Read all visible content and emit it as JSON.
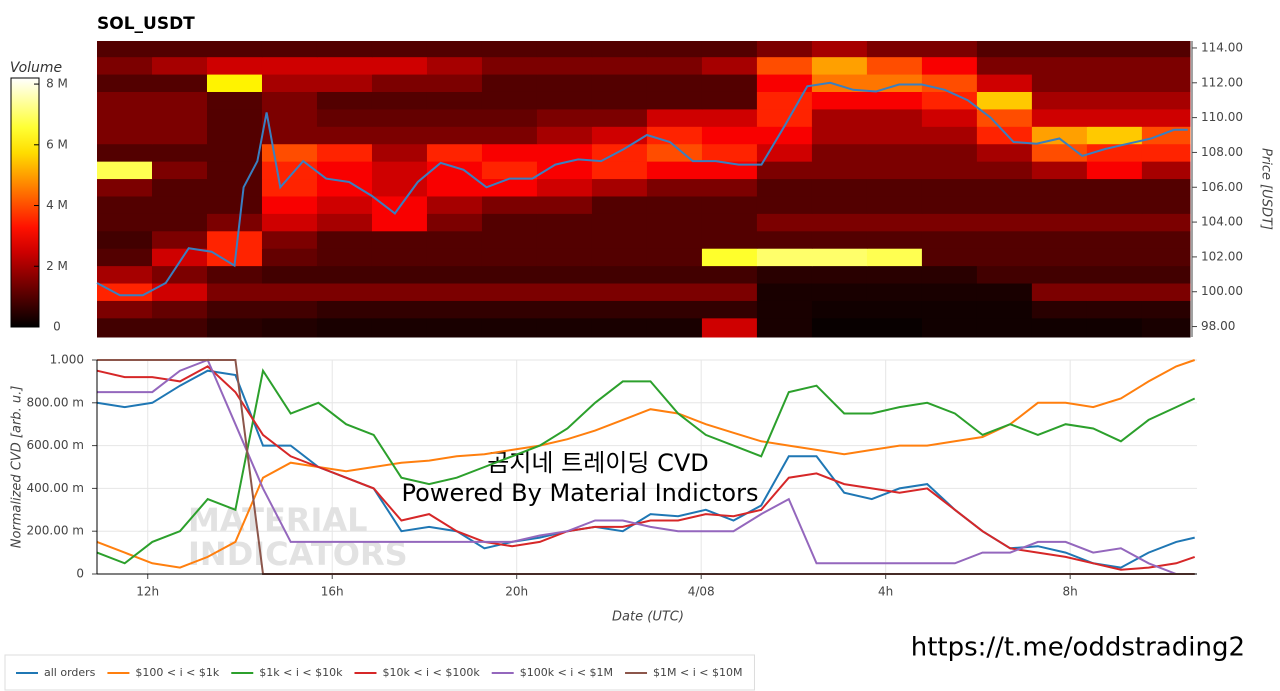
{
  "chart_data": [
    {
      "type": "heatmap",
      "title": "SOL_USDT",
      "y_label": "Price [USDT]",
      "colorbar_label": "Volume",
      "colormap": "hot",
      "clim": [
        0,
        8.2
      ],
      "cticks": [
        0,
        {
          "value": 2,
          "label": "2 M"
        },
        {
          "value": 4,
          "label": "4 M"
        },
        {
          "value": 6,
          "label": "6 M"
        },
        {
          "value": 8,
          "label": "8 M"
        }
      ],
      "xlim": [
        10.9,
        34.75
      ],
      "ylim": [
        97.4,
        114.4
      ],
      "yticks": [
        {
          "value": 98,
          "label": "98.00"
        },
        {
          "value": 100,
          "label": "100.00"
        },
        {
          "value": 102,
          "label": "102.00"
        },
        {
          "value": 104,
          "label": "104.00"
        },
        {
          "value": 106,
          "label": "106.00"
        },
        {
          "value": 108,
          "label": "108.00"
        },
        {
          "value": 110,
          "label": "110.00"
        },
        {
          "value": 112,
          "label": "112.00"
        },
        {
          "value": 114,
          "label": "114.00"
        }
      ],
      "x_bins": [
        10.9,
        12.1,
        13.3,
        14.5,
        15.7,
        16.9,
        18.1,
        19.3,
        20.5,
        21.7,
        22.9,
        24.1,
        25.3,
        26.5,
        27.7,
        28.9,
        30.1,
        31.3,
        32.5,
        33.7,
        34.75
      ],
      "y_bins": [
        97.4,
        98.5,
        99.5,
        100.5,
        101.5,
        102.5,
        103.5,
        104.5,
        105.5,
        106.5,
        107.5,
        108.5,
        109.5,
        110.5,
        111.5,
        112.5,
        113.5,
        114.4
      ],
      "values": [
        [
          0.8,
          0.8,
          0.5,
          0.4,
          0.3,
          0.3,
          0.3,
          0.3,
          0.3,
          0.3,
          0.3,
          2.5,
          0.3,
          0.1,
          0.1,
          0.2,
          0.2,
          0.2,
          0.2,
          0.3
        ],
        [
          1.5,
          1.2,
          0.8,
          0.8,
          0.6,
          0.6,
          0.6,
          0.6,
          0.6,
          0.6,
          0.6,
          0.6,
          0.3,
          0.2,
          0.2,
          0.2,
          0.2,
          0.5,
          0.5,
          0.5
        ],
        [
          3.5,
          2.5,
          1.5,
          1.5,
          1.5,
          1.5,
          1.5,
          1.5,
          1.5,
          1.5,
          1.5,
          1.5,
          0.3,
          0.3,
          0.3,
          0.3,
          0.3,
          1.5,
          1.5,
          1.5
        ],
        [
          2,
          1.5,
          1,
          0.8,
          0.8,
          0.8,
          0.8,
          0.8,
          0.8,
          0.8,
          0.8,
          0.8,
          0.5,
          0.5,
          0.5,
          0.5,
          0.8,
          0.8,
          0.8,
          0.8
        ],
        [
          1,
          2.5,
          3.5,
          1.2,
          1,
          1,
          1,
          1,
          1,
          1,
          1,
          6.5,
          7,
          7,
          6.8,
          1,
          1,
          1,
          1,
          1
        ],
        [
          0.8,
          1.5,
          3.5,
          1.5,
          1,
          1,
          1,
          1,
          1,
          1,
          1,
          1,
          1,
          1,
          1,
          1,
          1,
          1,
          1,
          1
        ],
        [
          1,
          1,
          1.5,
          2.5,
          2,
          3,
          1.5,
          1,
          1,
          1,
          1,
          1,
          1.5,
          1.5,
          1.5,
          1.5,
          1.5,
          1.5,
          1.5,
          1.5
        ],
        [
          1,
          1,
          1,
          3,
          2.5,
          3,
          2,
          1.5,
          1.5,
          1,
          1,
          1,
          1,
          1,
          1,
          1,
          1,
          1,
          1,
          1
        ],
        [
          1.5,
          1,
          1,
          3.5,
          3,
          2.5,
          3,
          3,
          2.5,
          2,
          1.5,
          1.5,
          1,
          1,
          1,
          1,
          1,
          1,
          1,
          1
        ],
        [
          6.8,
          1.5,
          1,
          3.5,
          3,
          2.5,
          3,
          3.5,
          3,
          3.5,
          3,
          3,
          1.5,
          1.5,
          1.5,
          1.5,
          1.5,
          2,
          3,
          2
        ],
        [
          1,
          1,
          1,
          4,
          3.5,
          2,
          3.5,
          3,
          3,
          3.5,
          4,
          3.5,
          2.5,
          1.5,
          1.5,
          1.5,
          2,
          4,
          3.5,
          3.5
        ],
        [
          1.5,
          1.5,
          1,
          1.5,
          1.5,
          1.5,
          1.5,
          1.5,
          2,
          2.5,
          3.5,
          3,
          3,
          2,
          2,
          2,
          3.5,
          5,
          5.5,
          4
        ],
        [
          1.5,
          1.5,
          1,
          1.5,
          1.2,
          1.2,
          1.2,
          1.2,
          1.5,
          1.5,
          2.5,
          2.5,
          3.5,
          2,
          2,
          2.5,
          4,
          2.5,
          2.5,
          2.5
        ],
        [
          1.5,
          1.5,
          1,
          1.5,
          1,
          1,
          1,
          1,
          1,
          1,
          1,
          1,
          3.5,
          3,
          3,
          3.5,
          5.5,
          2,
          2,
          2
        ],
        [
          1,
          1,
          6,
          2,
          2,
          1.5,
          1.5,
          1,
          1,
          1,
          1,
          1,
          3,
          4.5,
          4.5,
          4,
          2.5,
          1.5,
          1.5,
          1.5
        ],
        [
          1.5,
          2,
          2.5,
          2.5,
          2.5,
          2.5,
          2,
          1.5,
          1.5,
          1.5,
          1.5,
          2,
          4,
          5,
          4,
          3,
          1.5,
          1.5,
          1.5,
          1.5
        ],
        [
          1,
          1,
          1,
          1,
          1,
          1,
          1,
          1,
          1,
          1,
          1,
          1,
          1.5,
          2,
          1.5,
          1.5,
          1,
          1,
          1,
          1
        ]
      ],
      "series": [
        {
          "color": "#3a7fc0",
          "x": [
            10.9,
            11.4,
            11.9,
            12.4,
            12.9,
            13.4,
            13.9,
            14.1,
            14.4,
            14.6,
            14.9,
            15.4,
            15.9,
            16.4,
            16.9,
            17.4,
            17.9,
            18.4,
            18.9,
            19.4,
            19.9,
            20.4,
            20.9,
            21.4,
            21.9,
            22.4,
            22.9,
            23.4,
            23.9,
            24.4,
            24.9,
            25.4,
            25.9,
            26.4,
            26.9,
            27.4,
            27.9,
            28.4,
            28.9,
            29.4,
            29.9,
            30.4,
            30.9,
            31.4,
            31.9,
            32.4,
            32.9,
            33.4,
            33.9,
            34.4,
            34.7
          ],
          "values": [
            100.5,
            99.8,
            99.8,
            100.5,
            102.5,
            102.3,
            101.5,
            106,
            107.5,
            110.3,
            106,
            107.5,
            106.5,
            106.3,
            105.5,
            104.5,
            106.3,
            107.4,
            107,
            106,
            106.5,
            106.5,
            107.3,
            107.6,
            107.5,
            108.2,
            109,
            108.6,
            107.5,
            107.5,
            107.3,
            107.3,
            109.5,
            111.8,
            112,
            111.6,
            111.5,
            111.9,
            111.9,
            111.6,
            111,
            110,
            108.6,
            108.5,
            108.8,
            107.8,
            108.2,
            108.5,
            108.8,
            109.3,
            109.3
          ]
        }
      ]
    },
    {
      "type": "line",
      "x_label": "Date (UTC)",
      "y_label": "Normalized CVD [arb. u.]",
      "grid": true,
      "legend": "bottom-left",
      "xlim": [
        10.9,
        34.75
      ],
      "ylim": [
        0,
        1
      ],
      "xticks": [
        {
          "value": 12,
          "label": "12h"
        },
        {
          "value": 16,
          "label": "16h"
        },
        {
          "value": 20,
          "label": "20h"
        },
        {
          "value": 24,
          "label": "4/08"
        },
        {
          "value": 28,
          "label": "4h"
        },
        {
          "value": 32,
          "label": "8h"
        }
      ],
      "yticks": [
        0,
        {
          "value": 0.2,
          "label": "200.00 m"
        },
        {
          "value": 0.4,
          "label": "400.00 m"
        },
        {
          "value": 0.6,
          "label": "600.00 m"
        },
        {
          "value": 0.8,
          "label": "800.00 m"
        },
        {
          "value": 1,
          "label": "1.000"
        }
      ],
      "x": [
        10.9,
        11.5,
        12.1,
        12.7,
        13.3,
        13.9,
        14.5,
        15.1,
        15.7,
        16.3,
        16.9,
        17.5,
        18.1,
        18.7,
        19.3,
        19.9,
        20.5,
        21.1,
        21.7,
        22.3,
        22.9,
        23.5,
        24.1,
        24.7,
        25.3,
        25.9,
        26.5,
        27.1,
        27.7,
        28.3,
        28.9,
        29.5,
        30.1,
        30.7,
        31.3,
        31.9,
        32.5,
        33.1,
        33.7,
        34.3,
        34.7
      ],
      "series": [
        {
          "name": "all orders",
          "color": "#1f77b4",
          "values": [
            0.8,
            0.78,
            0.8,
            0.88,
            0.95,
            0.93,
            0.6,
            0.6,
            0.5,
            0.45,
            0.4,
            0.2,
            0.22,
            0.2,
            0.12,
            0.15,
            0.17,
            0.2,
            0.22,
            0.2,
            0.28,
            0.27,
            0.3,
            0.25,
            0.32,
            0.55,
            0.55,
            0.38,
            0.35,
            0.4,
            0.42,
            0.3,
            0.2,
            0.12,
            0.13,
            0.1,
            0.05,
            0.03,
            0.1,
            0.15,
            0.17
          ]
        },
        {
          "name": "$100 < i < $1k",
          "color": "#ff7f0e",
          "values": [
            0.15,
            0.1,
            0.05,
            0.03,
            0.08,
            0.15,
            0.45,
            0.52,
            0.5,
            0.48,
            0.5,
            0.52,
            0.53,
            0.55,
            0.56,
            0.58,
            0.6,
            0.63,
            0.67,
            0.72,
            0.77,
            0.75,
            0.7,
            0.66,
            0.62,
            0.6,
            0.58,
            0.56,
            0.58,
            0.6,
            0.6,
            0.62,
            0.64,
            0.7,
            0.8,
            0.8,
            0.78,
            0.82,
            0.9,
            0.97,
            1.0
          ]
        },
        {
          "name": "$1k < i < $10k",
          "color": "#2ca02c",
          "values": [
            0.1,
            0.05,
            0.15,
            0.2,
            0.35,
            0.3,
            0.95,
            0.75,
            0.8,
            0.7,
            0.65,
            0.45,
            0.42,
            0.45,
            0.5,
            0.55,
            0.6,
            0.68,
            0.8,
            0.9,
            0.9,
            0.75,
            0.65,
            0.6,
            0.55,
            0.85,
            0.88,
            0.75,
            0.75,
            0.78,
            0.8,
            0.75,
            0.65,
            0.7,
            0.65,
            0.7,
            0.68,
            0.62,
            0.72,
            0.78,
            0.82
          ]
        },
        {
          "name": "$10k < i < $100k",
          "color": "#d62728",
          "values": [
            0.95,
            0.92,
            0.92,
            0.9,
            0.97,
            0.85,
            0.65,
            0.55,
            0.5,
            0.45,
            0.4,
            0.25,
            0.28,
            0.2,
            0.15,
            0.13,
            0.15,
            0.2,
            0.22,
            0.22,
            0.25,
            0.25,
            0.28,
            0.27,
            0.3,
            0.45,
            0.47,
            0.42,
            0.4,
            0.38,
            0.4,
            0.3,
            0.2,
            0.12,
            0.1,
            0.08,
            0.05,
            0.02,
            0.03,
            0.05,
            0.08
          ]
        },
        {
          "name": "$100k < i < $1M",
          "color": "#9467bd",
          "values": [
            0.85,
            0.85,
            0.85,
            0.95,
            1.0,
            0.7,
            0.4,
            0.15,
            0.15,
            0.15,
            0.15,
            0.15,
            0.15,
            0.15,
            0.15,
            0.15,
            0.18,
            0.2,
            0.25,
            0.25,
            0.22,
            0.2,
            0.2,
            0.2,
            0.28,
            0.35,
            0.05,
            0.05,
            0.05,
            0.05,
            0.05,
            0.05,
            0.1,
            0.1,
            0.15,
            0.15,
            0.1,
            0.12,
            0.05,
            0,
            0
          ]
        },
        {
          "name": "$1M < i < $10M",
          "color": "#8c564b",
          "values": [
            1,
            1,
            1,
            1,
            1,
            1,
            0,
            0,
            0,
            0,
            0,
            0,
            0,
            0,
            0,
            0,
            0,
            0,
            0,
            0,
            0,
            0,
            0,
            0,
            0,
            0,
            0,
            0,
            0,
            0,
            0,
            0,
            0,
            0,
            0,
            0,
            0,
            0,
            0,
            0,
            0
          ]
        }
      ],
      "annotations": [
        "MATERIAL",
        "INDICATORS",
        "곰지네 트레이딩 CVD",
        "Powered By Material Indictors"
      ]
    }
  ],
  "footer": {
    "link": "https://t.me/oddstrading2"
  }
}
